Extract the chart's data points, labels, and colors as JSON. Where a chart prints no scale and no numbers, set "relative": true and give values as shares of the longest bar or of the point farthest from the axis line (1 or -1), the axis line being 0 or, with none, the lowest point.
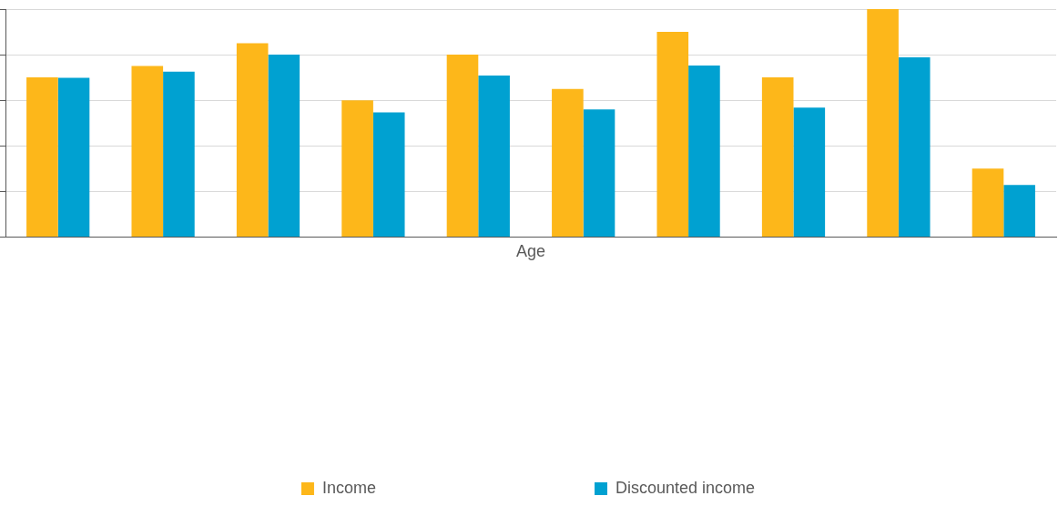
{
  "chart_data": {
    "type": "bar",
    "xlabel": "Age",
    "relative": true,
    "grid": "y",
    "legend": "bottom",
    "categories": [
      null,
      null,
      null,
      null,
      null,
      null,
      null,
      null,
      null,
      null
    ],
    "series": [
      {
        "name": "Income",
        "color": "#fdb71a",
        "values": [
          0.7,
          0.75,
          0.85,
          0.6,
          0.8,
          0.65,
          0.9,
          0.7,
          1,
          0.3
        ]
      },
      {
        "name": "Discounted income",
        "color": "#00a1d1",
        "values": [
          0.698,
          0.725,
          0.8,
          0.547,
          0.708,
          0.56,
          0.752,
          0.568,
          0.788,
          0.228
        ]
      }
    ]
  }
}
